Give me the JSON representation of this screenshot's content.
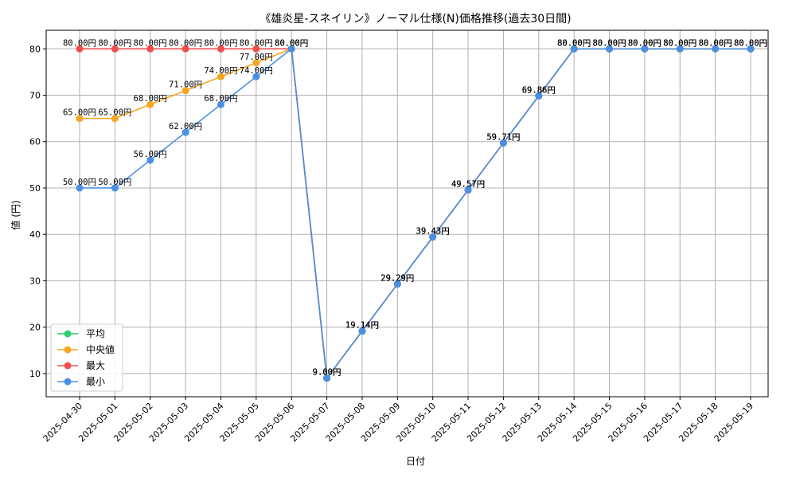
{
  "chart_data": {
    "type": "line",
    "title": "《雄炎星-スネイリン》ノーマル仕様(N)価格推移(過去30日間)",
    "xlabel": "日付",
    "ylabel": "値 (円)",
    "ylim": [
      5,
      84
    ],
    "yticks": [
      10,
      20,
      30,
      40,
      50,
      60,
      70,
      80
    ],
    "grid": true,
    "legend_position": "bottom-left",
    "label_suffix": "円",
    "categories": [
      "2025-04-30",
      "2025-05-01",
      "2025-05-02",
      "2025-05-03",
      "2025-05-04",
      "2025-05-05",
      "2025-05-06",
      "2025-05-07",
      "2025-05-08",
      "2025-05-09",
      "2025-05-10",
      "2025-05-11",
      "2025-05-12",
      "2025-05-13",
      "2025-05-14",
      "2025-05-15",
      "2025-05-16",
      "2025-05-17",
      "2025-05-18",
      "2025-05-19"
    ],
    "series": [
      {
        "name": "平均",
        "color": "#2ecc71",
        "values": [
          null,
          null,
          null,
          null,
          null,
          null,
          80,
          9,
          19.14,
          29.29,
          39.43,
          49.57,
          59.71,
          69.86,
          80,
          80,
          80,
          80,
          80,
          80
        ],
        "labels": false
      },
      {
        "name": "中央値",
        "color": "#f5a623",
        "values": [
          65,
          65,
          68,
          71,
          74,
          77,
          80,
          9,
          19.14,
          29.29,
          39.43,
          49.57,
          59.71,
          69.86,
          80,
          80,
          80,
          80,
          80,
          80
        ],
        "labels": true
      },
      {
        "name": "最大",
        "color": "#f04e4e",
        "values": [
          80,
          80,
          80,
          80,
          80,
          80,
          80,
          9,
          19.14,
          29.29,
          39.43,
          49.57,
          59.71,
          69.86,
          80,
          80,
          80,
          80,
          80,
          80
        ],
        "labels": true
      },
      {
        "name": "最小",
        "color": "#4a90e2",
        "values": [
          50,
          50,
          56,
          62,
          68,
          74,
          80,
          9,
          19.14,
          29.29,
          39.43,
          49.57,
          59.71,
          69.86,
          80,
          80,
          80,
          80,
          80,
          80
        ],
        "labels": true
      }
    ]
  }
}
